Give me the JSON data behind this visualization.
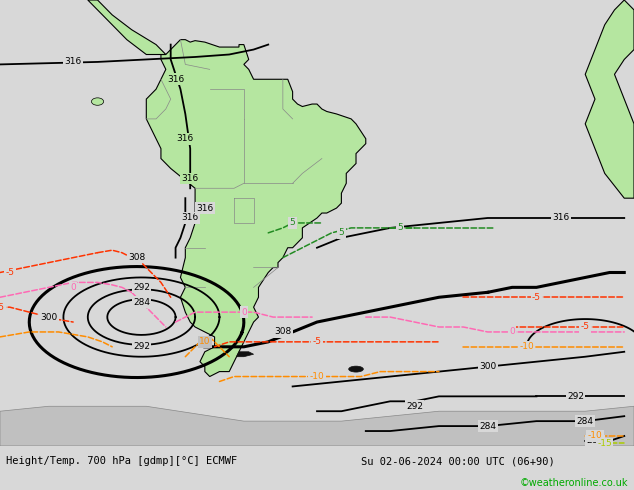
{
  "title_left": "Height/Temp. 700 hPa [gdmp][°C] ECMWF",
  "title_right": "Su 02-06-2024 00:00 UTC (06+90)",
  "watermark": "©weatheronline.co.uk",
  "bg_color": "#d8d8d8",
  "land_color": "#b5e6a0",
  "ocean_color": "#d8d8d8",
  "coast_color": "#000000",
  "border_color": "#888888",
  "figsize": [
    6.34,
    4.9
  ],
  "dpi": 100,
  "extent": [
    -110,
    20,
    -70,
    20
  ],
  "xlim": [
    -110,
    20
  ],
  "ylim": [
    -70,
    20
  ]
}
